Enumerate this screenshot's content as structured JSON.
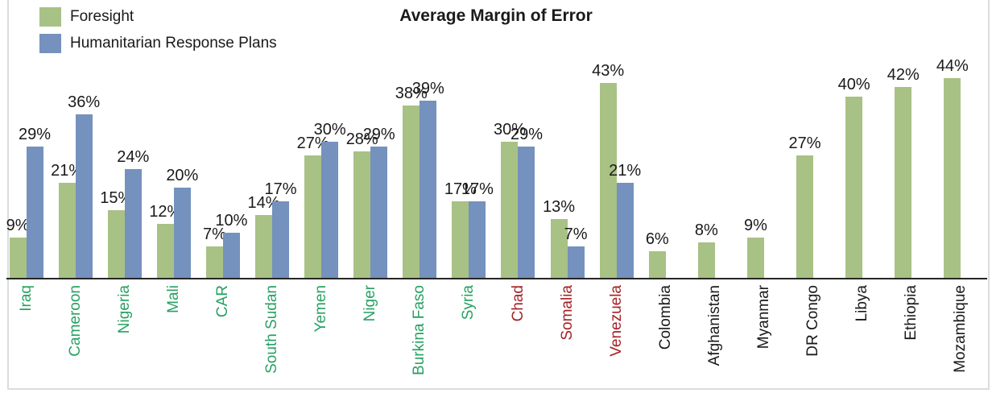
{
  "title": "Average Margin of Error",
  "legend": {
    "items": [
      {
        "label": "Foresight",
        "color": "#a8c185"
      },
      {
        "label": "Humanitarian Response Plans",
        "color": "#7591bd"
      }
    ]
  },
  "colors": {
    "foresight_bar": "#a8c185",
    "hrp_bar": "#7591bd",
    "axis_line": "#262626",
    "data_label": "#1a1a1a",
    "category_green": "#27a163",
    "category_red": "#a52126",
    "category_black": "#1a1a1a",
    "frame_border": "#dcdcdc"
  },
  "chart_data": {
    "type": "bar",
    "title": "Average Margin of Error",
    "categories": [
      "Iraq",
      "Cameroon",
      "Nigeria",
      "Mali",
      "CAR",
      "South Sudan",
      "Yemen",
      "Niger",
      "Burkina Faso",
      "Syria",
      "Chad",
      "Somalia",
      "Venezuela",
      "Colombia",
      "Afghanistan",
      "Myanmar",
      "DR Congo",
      "Libya",
      "Ethiopia",
      "Mozambique"
    ],
    "category_label_colors": [
      "#27a163",
      "#27a163",
      "#27a163",
      "#27a163",
      "#27a163",
      "#27a163",
      "#27a163",
      "#27a163",
      "#27a163",
      "#27a163",
      "#a52126",
      "#a52126",
      "#a52126",
      "#1a1a1a",
      "#1a1a1a",
      "#1a1a1a",
      "#1a1a1a",
      "#1a1a1a",
      "#1a1a1a",
      "#1a1a1a"
    ],
    "series": [
      {
        "name": "Foresight",
        "color": "#a8c185",
        "values": [
          9,
          21,
          15,
          12,
          7,
          14,
          27,
          28,
          38,
          17,
          30,
          13,
          43,
          6,
          8,
          9,
          27,
          40,
          42,
          44
        ]
      },
      {
        "name": "Humanitarian Response Plans",
        "color": "#7591bd",
        "values": [
          29,
          36,
          24,
          20,
          10,
          17,
          30,
          29,
          39,
          17,
          29,
          7,
          21,
          null,
          null,
          null,
          null,
          null,
          null,
          null
        ]
      }
    ],
    "value_suffix": "%",
    "data_labels_shown": true,
    "xlabel": "",
    "ylabel": "",
    "ylim": [
      0,
      48
    ],
    "y_axis_shown": false,
    "grid": false,
    "legend_position": "top-left"
  }
}
